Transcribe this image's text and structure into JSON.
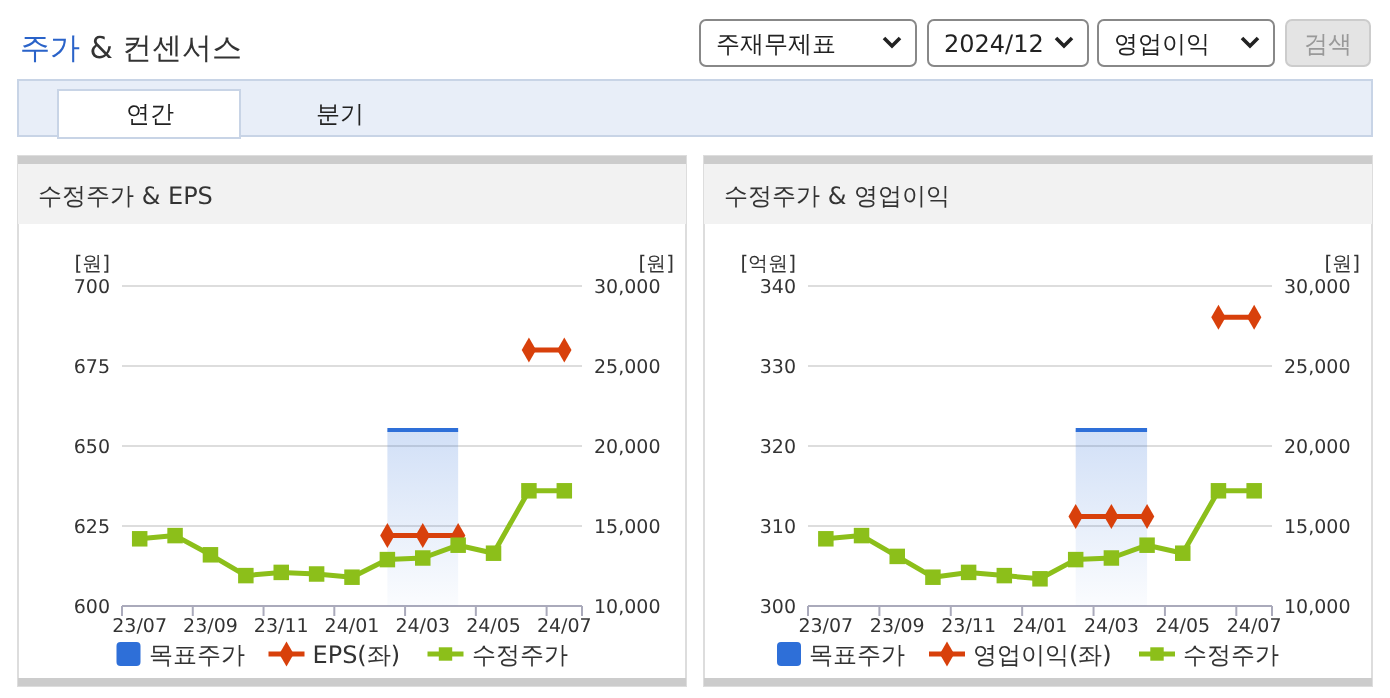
{
  "chart_data": [
    {
      "type": "other",
      "title": "주가 & 컨센서스",
      "annotations": [
        "주재무제표",
        "2024/12",
        "영업이익",
        "검색",
        "연간",
        "분기"
      ]
    },
    {
      "type": "line",
      "title": "수정주가 & EPS",
      "ylabel": "[원]",
      "y2label": "[원]",
      "categories": [
        "23/07",
        null,
        "23/09",
        null,
        "23/11",
        null,
        "24/01",
        null,
        "24/03",
        null,
        "24/05",
        null,
        "24/07"
      ],
      "ylim": [
        600,
        700
      ],
      "yticks": [
        600,
        625,
        650,
        675,
        700
      ],
      "y2lim": [
        10000,
        30000
      ],
      "y2ticks": [
        {
          "value": 10000,
          "label": "10,000"
        },
        {
          "value": 15000,
          "label": "15,000"
        },
        {
          "value": 20000,
          "label": "20,000"
        },
        {
          "value": 25000,
          "label": "25,000"
        },
        {
          "value": 30000,
          "label": "30,000"
        }
      ],
      "grid": "y",
      "legend": "bottom",
      "series": [
        {
          "name": "목표주가",
          "type": "area",
          "axis": "y2",
          "color": "#2e6fd8",
          "marker": "none",
          "values": [
            null,
            null,
            null,
            null,
            null,
            null,
            null,
            21000,
            21000,
            21000,
            null,
            null,
            null
          ]
        },
        {
          "name": "EPS(좌)",
          "type": "line",
          "axis": "y",
          "color": "#d8400b",
          "marker": "diamond",
          "values": [
            null,
            null,
            null,
            null,
            null,
            null,
            null,
            622,
            622,
            622,
            null,
            680,
            680
          ]
        },
        {
          "name": "수정주가",
          "type": "line",
          "axis": "y2",
          "color": "#8cbf1a",
          "marker": "square",
          "values": [
            14200,
            14400,
            13200,
            11900,
            12100,
            12000,
            11800,
            12900,
            13000,
            13800,
            13300,
            17200,
            17200
          ]
        }
      ]
    },
    {
      "type": "line",
      "title": "수정주가 & 영업이익",
      "ylabel": "[억원]",
      "y2label": "[원]",
      "categories": [
        "23/07",
        null,
        "23/09",
        null,
        "23/11",
        null,
        "24/01",
        null,
        "24/03",
        null,
        "24/05",
        null,
        "24/07"
      ],
      "ylim": [
        300,
        340
      ],
      "yticks": [
        300,
        310,
        320,
        330,
        340
      ],
      "y2lim": [
        10000,
        30000
      ],
      "y2ticks": [
        {
          "value": 10000,
          "label": "10,000"
        },
        {
          "value": 15000,
          "label": "15,000"
        },
        {
          "value": 20000,
          "label": "20,000"
        },
        {
          "value": 25000,
          "label": "25,000"
        },
        {
          "value": 30000,
          "label": "30,000"
        }
      ],
      "grid": "y",
      "legend": "bottom",
      "series": [
        {
          "name": "목표주가",
          "type": "area",
          "axis": "y2",
          "color": "#2e6fd8",
          "marker": "none",
          "values": [
            null,
            null,
            null,
            null,
            null,
            null,
            null,
            21000,
            21000,
            21000,
            null,
            null,
            null
          ]
        },
        {
          "name": "영업이익(좌)",
          "type": "line",
          "axis": "y",
          "color": "#d8400b",
          "marker": "diamond",
          "values": [
            null,
            null,
            null,
            null,
            null,
            null,
            null,
            311.2,
            311.2,
            311.2,
            null,
            336.1,
            336.1
          ]
        },
        {
          "name": "수정주가",
          "type": "line",
          "axis": "y2",
          "color": "#8cbf1a",
          "marker": "square",
          "values": [
            14200,
            14400,
            13100,
            11800,
            12100,
            11900,
            11700,
            12900,
            13000,
            13800,
            13300,
            17200,
            17200
          ]
        }
      ]
    }
  ]
}
